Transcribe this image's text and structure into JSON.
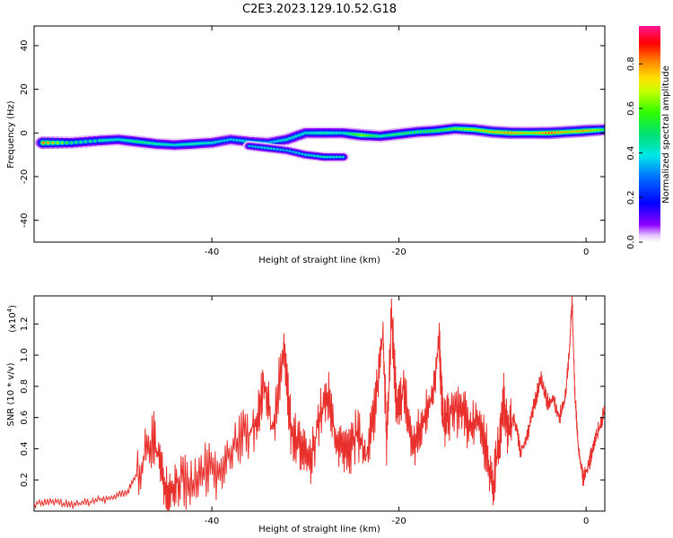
{
  "title": "C2E3.2023.129.10.52.G18",
  "chart_data": [
    {
      "type": "heatmap",
      "title": "C2E3.2023.129.10.52.G18",
      "xlabel": "Height of straight line (km)",
      "ylabel": "Frequency (Hz)",
      "xlim": [
        -59,
        2
      ],
      "ylim": [
        -50,
        49
      ],
      "x_ticks": [
        "-40",
        "-20",
        "0"
      ],
      "x_tick_values": [
        -40,
        -20,
        0
      ],
      "y_ticks": [
        "40",
        "20",
        "0",
        "-20",
        "-40"
      ],
      "y_tick_values": [
        40,
        20,
        0,
        -20,
        -40
      ],
      "colorbar": {
        "label": "Normalized spectral amplitude",
        "range": [
          0,
          0.97
        ],
        "ticks": [
          "0.0",
          "0.2",
          "0.4",
          "0.6",
          "0.8"
        ],
        "tick_values": [
          0.0,
          0.2,
          0.4,
          0.6,
          0.8
        ],
        "colormap": "rainbow (white-violet-blue-cyan-green-yellow-orange-red-magenta)"
      },
      "ridge": {
        "description_free": true,
        "x": [
          -58,
          -55,
          -52,
          -50,
          -48,
          -46,
          -44,
          -42,
          -40,
          -38,
          -36,
          -34,
          -32,
          -30,
          -28,
          -26,
          -24,
          -22,
          -20,
          -18,
          -16,
          -14,
          -12,
          -10,
          -8,
          -6,
          -4,
          -2,
          0,
          2
        ],
        "y": [
          -4.5,
          -4.5,
          -3.5,
          -3,
          -4,
          -5,
          -5.5,
          -5,
          -4.5,
          -3,
          -4,
          -4.5,
          -3,
          0,
          0,
          0,
          -1,
          -1.5,
          -0.5,
          0.5,
          1,
          2,
          1.5,
          0.5,
          0,
          0,
          0,
          0.5,
          1,
          1.5
        ],
        "amplitude": [
          0.9,
          0.55,
          0.5,
          0.45,
          0.55,
          0.5,
          0.45,
          0.5,
          0.45,
          0.4,
          0.45,
          0.4,
          0.45,
          0.45,
          0.5,
          0.45,
          0.7,
          0.5,
          0.55,
          0.55,
          0.6,
          0.65,
          0.75,
          0.8,
          0.85,
          0.75,
          0.9,
          0.8,
          0.85,
          0.6
        ]
      },
      "secondary_branch": {
        "x": [
          -36,
          -34,
          -32,
          -30,
          -28,
          -26
        ],
        "y": [
          -6,
          -7,
          -8,
          -10,
          -11,
          -11
        ],
        "amplitude": [
          0.4,
          0.45,
          0.4,
          0.45,
          0.5,
          0.45
        ]
      },
      "grid": false
    },
    {
      "type": "line",
      "xlabel": "Height of straight line (km)",
      "ylabel": "SNR (10 * v/v)",
      "scale_label": "(x10",
      "scale_exponent": "4",
      "scale_suffix": ")",
      "xlim": [
        -59,
        2
      ],
      "ylim": [
        0,
        1.38
      ],
      "x_ticks": [
        "-40",
        "-20",
        "0"
      ],
      "x_tick_values": [
        -40,
        -20,
        0
      ],
      "y_ticks": [
        "0.2",
        "0.4",
        "0.6",
        "0.8",
        "1.0",
        "1.2"
      ],
      "y_tick_values": [
        0.2,
        0.4,
        0.6,
        0.8,
        1.0,
        1.2
      ],
      "color": "#e8302c",
      "series": [
        {
          "x": [
            -59,
            -57,
            -55,
            -53,
            -51,
            -49,
            -47.5,
            -46.2,
            -45.3,
            -44.5,
            -43.5,
            -42,
            -40.5,
            -39,
            -37.5,
            -36,
            -35,
            -34.5,
            -33.5,
            -32.3,
            -31.5,
            -30.5,
            -29.5,
            -28.5,
            -27.5,
            -26.5,
            -25.5,
            -24.5,
            -23.5,
            -22.5,
            -21.7,
            -21.3,
            -20.8,
            -20.2,
            -19.5,
            -18.5,
            -17.5,
            -16.5,
            -15.7,
            -15.3,
            -14.7,
            -13.5,
            -12.5,
            -11.5,
            -10.5,
            -10,
            -9.2,
            -8.8,
            -8.3,
            -7.7,
            -7,
            -6.3,
            -5.5,
            -4.8,
            -4.2,
            -3.5,
            -2.9,
            -2.3,
            -1.8,
            -1.5,
            -1.2,
            -0.8,
            -0.3,
            0.3,
            0.8,
            1.5,
            2
          ],
          "values": [
            0.05,
            0.06,
            0.04,
            0.06,
            0.08,
            0.12,
            0.3,
            0.48,
            0.22,
            0.14,
            0.2,
            0.16,
            0.28,
            0.22,
            0.45,
            0.5,
            0.6,
            0.85,
            0.5,
            1.05,
            0.5,
            0.4,
            0.3,
            0.6,
            0.72,
            0.4,
            0.35,
            0.5,
            0.35,
            0.7,
            1.15,
            0.4,
            1.28,
            0.6,
            0.8,
            0.4,
            0.55,
            0.72,
            1.1,
            0.55,
            0.62,
            0.65,
            0.55,
            0.6,
            0.35,
            0.15,
            0.45,
            0.72,
            0.5,
            0.6,
            0.38,
            0.48,
            0.7,
            0.85,
            0.7,
            0.72,
            0.6,
            0.7,
            1.0,
            1.36,
            0.75,
            0.4,
            0.2,
            0.3,
            0.42,
            0.55,
            0.65
          ]
        }
      ],
      "grid": false
    }
  ]
}
